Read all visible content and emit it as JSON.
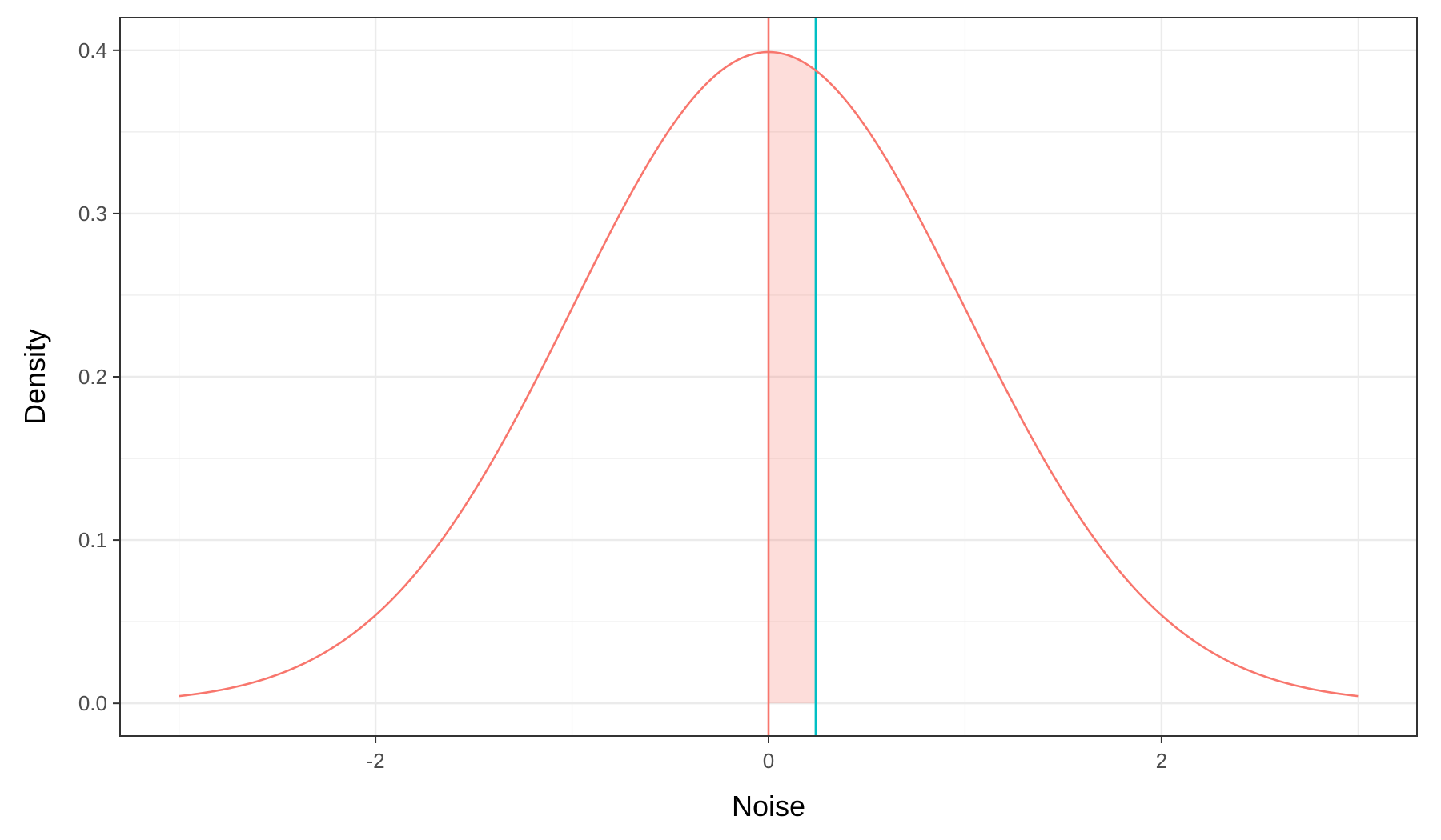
{
  "chart_data": {
    "type": "line",
    "title": "",
    "xlabel": "Noise",
    "ylabel": "Density",
    "xlim": [
      -3.3,
      3.3
    ],
    "ylim": [
      -0.02,
      0.42
    ],
    "x_ticks": [
      -2,
      0,
      2
    ],
    "x_tick_labels": [
      "-2",
      "0",
      "2"
    ],
    "y_ticks": [
      0.0,
      0.1,
      0.2,
      0.3,
      0.4
    ],
    "y_tick_labels": [
      "0.0",
      "0.1",
      "0.2",
      "0.3",
      "0.4"
    ],
    "x_minor": [
      -3,
      -1,
      1,
      3
    ],
    "y_minor": [
      0.05,
      0.15,
      0.25,
      0.35
    ],
    "grid": true,
    "legend": "none",
    "series": [
      {
        "distribution": "normal",
        "mean": 0,
        "sd": 1,
        "x_range": [
          -3,
          3
        ],
        "color": "#F8766D"
      }
    ],
    "shaded_region": {
      "x_from": 0,
      "x_to": 0.24,
      "color": "#F8766D",
      "opacity": 0.25
    },
    "vlines": [
      {
        "x": 0,
        "color": "#F8766D"
      },
      {
        "x": 0.24,
        "color": "#00BFC4"
      }
    ]
  }
}
